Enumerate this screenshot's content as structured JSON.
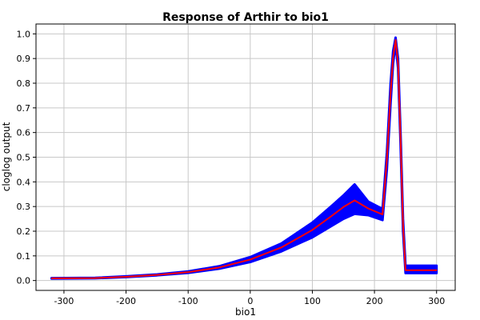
{
  "chart_data": {
    "type": "area",
    "title": "Response of Arthir to bio1",
    "xlabel": "bio1",
    "ylabel": "cloglog output",
    "xlim": [
      -345,
      330
    ],
    "ylim": [
      -0.04,
      1.04
    ],
    "x_ticks": [
      -300,
      -200,
      -100,
      0,
      100,
      200,
      300
    ],
    "y_ticks": [
      0.0,
      0.1,
      0.2,
      0.3,
      0.4,
      0.5,
      0.6,
      0.7,
      0.8,
      0.9,
      1.0
    ],
    "x_tick_labels": [
      "-300",
      "-200",
      "-100",
      "0",
      "100",
      "200",
      "300"
    ],
    "y_tick_labels": [
      "0.0",
      "0.1",
      "0.2",
      "0.3",
      "0.4",
      "0.5",
      "0.6",
      "0.7",
      "0.8",
      "0.9",
      "1.0"
    ],
    "grid": true,
    "legend": "none",
    "series": [
      {
        "role": "band",
        "color": "#0000ff",
        "x": [
          -320,
          -250,
          -200,
          -150,
          -100,
          -50,
          0,
          50,
          100,
          130,
          150,
          168,
          190,
          213,
          220,
          226,
          230,
          234,
          238,
          242,
          246,
          250,
          300
        ],
        "upper": [
          0.01,
          0.011,
          0.017,
          0.025,
          0.037,
          0.058,
          0.095,
          0.15,
          0.235,
          0.3,
          0.345,
          0.39,
          0.32,
          0.29,
          0.52,
          0.8,
          0.93,
          0.985,
          0.9,
          0.6,
          0.25,
          0.06,
          0.06
        ],
        "lower": [
          0.008,
          0.009,
          0.014,
          0.021,
          0.031,
          0.048,
          0.075,
          0.118,
          0.175,
          0.22,
          0.25,
          0.27,
          0.265,
          0.245,
          0.45,
          0.72,
          0.88,
          0.96,
          0.86,
          0.55,
          0.2,
          0.03,
          0.03
        ]
      },
      {
        "role": "mean",
        "color": "#ff0000",
        "x": [
          -320,
          -250,
          -200,
          -150,
          -100,
          -50,
          0,
          50,
          100,
          130,
          150,
          168,
          190,
          213,
          220,
          226,
          230,
          234,
          238,
          242,
          246,
          250,
          300
        ],
        "values": [
          0.009,
          0.01,
          0.015,
          0.023,
          0.034,
          0.053,
          0.085,
          0.134,
          0.205,
          0.26,
          0.298,
          0.325,
          0.292,
          0.268,
          0.49,
          0.76,
          0.905,
          0.975,
          0.88,
          0.575,
          0.225,
          0.042,
          0.042
        ]
      }
    ]
  }
}
